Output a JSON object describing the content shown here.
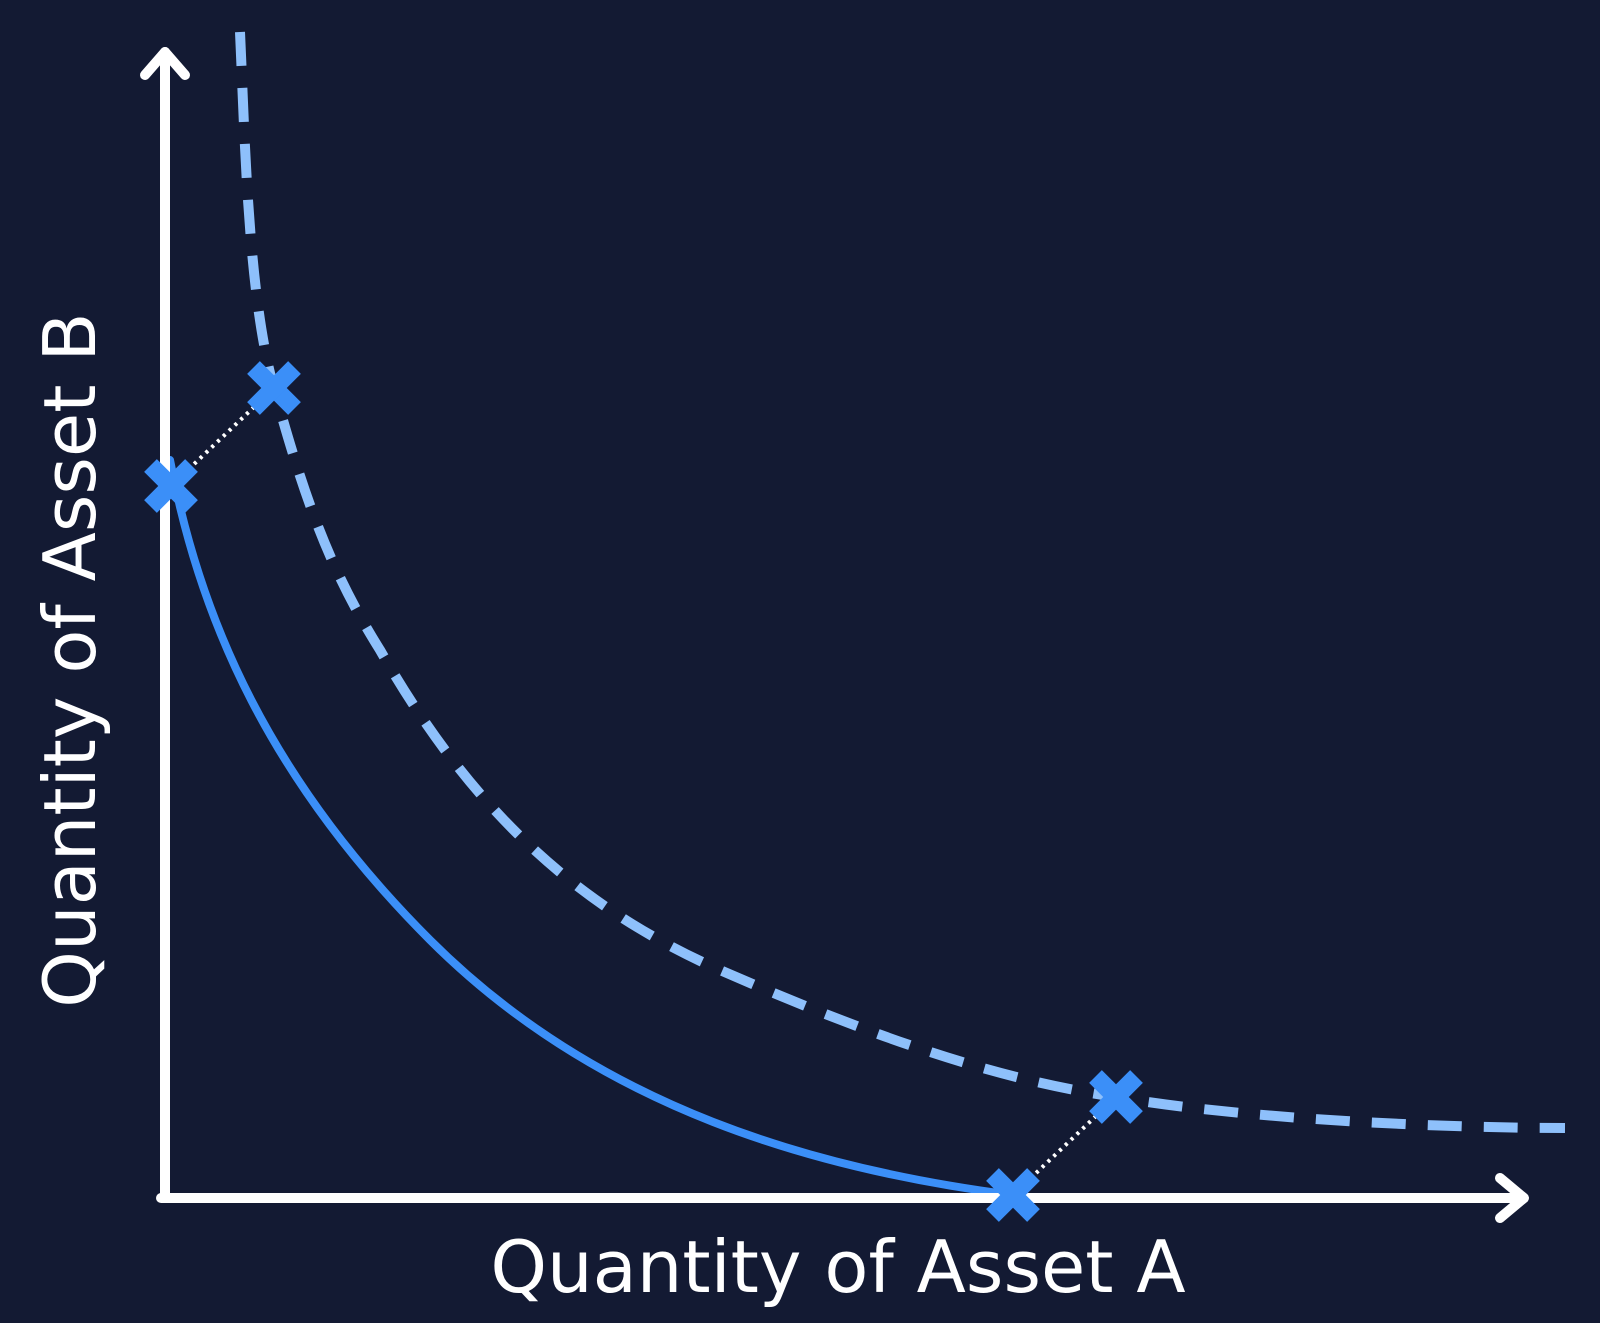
{
  "diagram": {
    "x_axis_label": "Quantity of Asset A",
    "y_axis_label": "Quantity of Asset B",
    "colors": {
      "background": "#131a33",
      "axis": "#ffffff",
      "solid_curve": "#3b8ff8",
      "dashed_curve": "#8ec0fb",
      "marker": "#3b8ff8",
      "connector": "#ffffff"
    },
    "curves": [
      {
        "id": "original-curve",
        "style": "solid"
      },
      {
        "id": "shifted-curve",
        "style": "dashed"
      }
    ],
    "markers": [
      {
        "id": "marker-upper-left-original",
        "curve": "original-curve"
      },
      {
        "id": "marker-upper-left-shifted",
        "curve": "shifted-curve"
      },
      {
        "id": "marker-lower-right-original",
        "curve": "original-curve"
      },
      {
        "id": "marker-lower-right-shifted",
        "curve": "shifted-curve"
      }
    ],
    "connectors": [
      {
        "from": "marker-upper-left-original",
        "to": "marker-upper-left-shifted",
        "style": "dotted"
      },
      {
        "from": "marker-lower-right-original",
        "to": "marker-lower-right-shifted",
        "style": "dotted"
      }
    ]
  }
}
